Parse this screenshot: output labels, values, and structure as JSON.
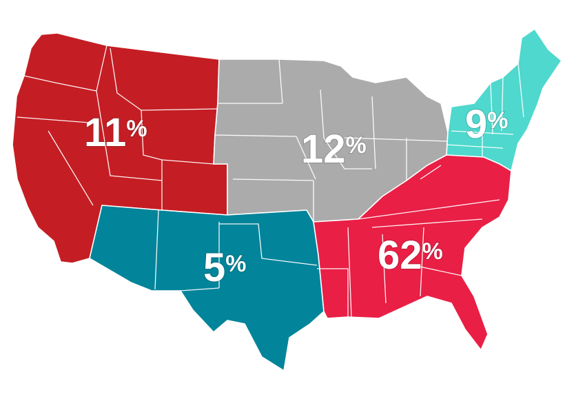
{
  "map": {
    "regions": [
      {
        "id": "west",
        "value": "11",
        "unit": "%",
        "color": "#c41e24"
      },
      {
        "id": "midwest",
        "value": "12",
        "unit": "%",
        "color": "#ababab"
      },
      {
        "id": "northeast",
        "value": "9",
        "unit": "%",
        "color": "#4fd8cd"
      },
      {
        "id": "southwest",
        "value": "5",
        "unit": "%",
        "color": "#02849a"
      },
      {
        "id": "southeast",
        "value": "62",
        "unit": "%",
        "color": "#e91f45"
      }
    ]
  }
}
